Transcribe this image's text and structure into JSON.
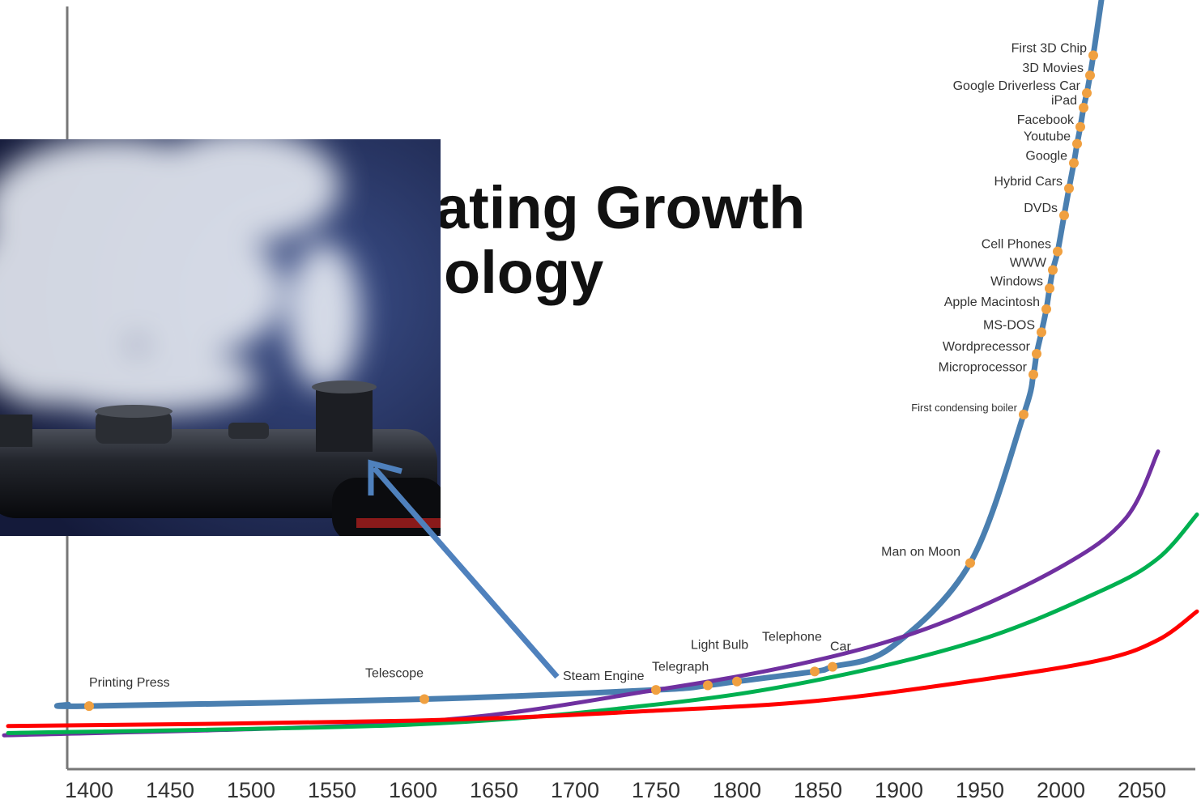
{
  "chart_data": {
    "type": "line",
    "title_lines": [
      "ating Growth",
      "ology"
    ],
    "xlim": [
      1345,
      2087
    ],
    "ylim": [
      0,
      100
    ],
    "xticks": [
      1400,
      1450,
      1500,
      1550,
      1600,
      1650,
      1700,
      1750,
      1800,
      1850,
      1900,
      1950,
      2000,
      2050
    ],
    "series": [
      {
        "color": "#4a7fb0",
        "x": [
          1387,
          1400,
          1607,
          1750,
          1782,
          1800,
          1848,
          1859,
          1895,
          1944,
          1977,
          1983,
          1985,
          1988,
          1991,
          1993,
          1995,
          1998,
          2002,
          2005,
          2008,
          2010,
          2012,
          2014,
          2016,
          2018,
          2020,
          2025
        ],
        "values": [
          8.4,
          8.2,
          9.1,
          10.3,
          10.9,
          11.4,
          12.7,
          13.3,
          15.8,
          26.8,
          46.1,
          51.3,
          54.0,
          56.8,
          59.8,
          62.5,
          64.9,
          67.3,
          72.0,
          75.5,
          78.8,
          81.3,
          83.5,
          86.0,
          87.9,
          90.2,
          92.8,
          100
        ],
        "labels": [
          null,
          "Printing Press",
          "Telescope",
          "Steam Engine",
          "Telegraph",
          "Light Bulb",
          "Telephone",
          "Car",
          null,
          "Man on Moon",
          "First condensing boiler",
          "Microprocessor",
          "Wordprecessor",
          "MS-DOS",
          "Apple Macintosh",
          "Windows",
          "WWW",
          "Cell Phones",
          "DVDs",
          "Hybrid Cars",
          "Google",
          "Youtube",
          "Facebook",
          "iPad",
          "Google Driverless Car",
          "3D Movies",
          "First 3D Chip",
          null
        ],
        "point_color": "#f0a040"
      },
      {
        "color": "#7030a0",
        "x": [
          1347.5,
          1600,
          1750,
          1850,
          1925,
          2000,
          2040,
          2060
        ],
        "values": [
          4.4,
          6.1,
          10.3,
          14.2,
          18.9,
          26.3,
          32.6,
          41.3
        ]
      },
      {
        "color": "#00b050",
        "x": [
          1350,
          1600,
          1750,
          1850,
          1950,
          2025,
          2060,
          2084
        ],
        "values": [
          4.7,
          5.8,
          8.4,
          11.6,
          16.8,
          23.2,
          27.4,
          33.1
        ]
      },
      {
        "color": "#ff0000",
        "x": [
          1350,
          1600,
          1750,
          1850,
          1950,
          2025,
          2060,
          2084
        ],
        "values": [
          5.6,
          6.3,
          7.6,
          8.9,
          11.6,
          14.2,
          16.8,
          20.5
        ]
      }
    ]
  }
}
